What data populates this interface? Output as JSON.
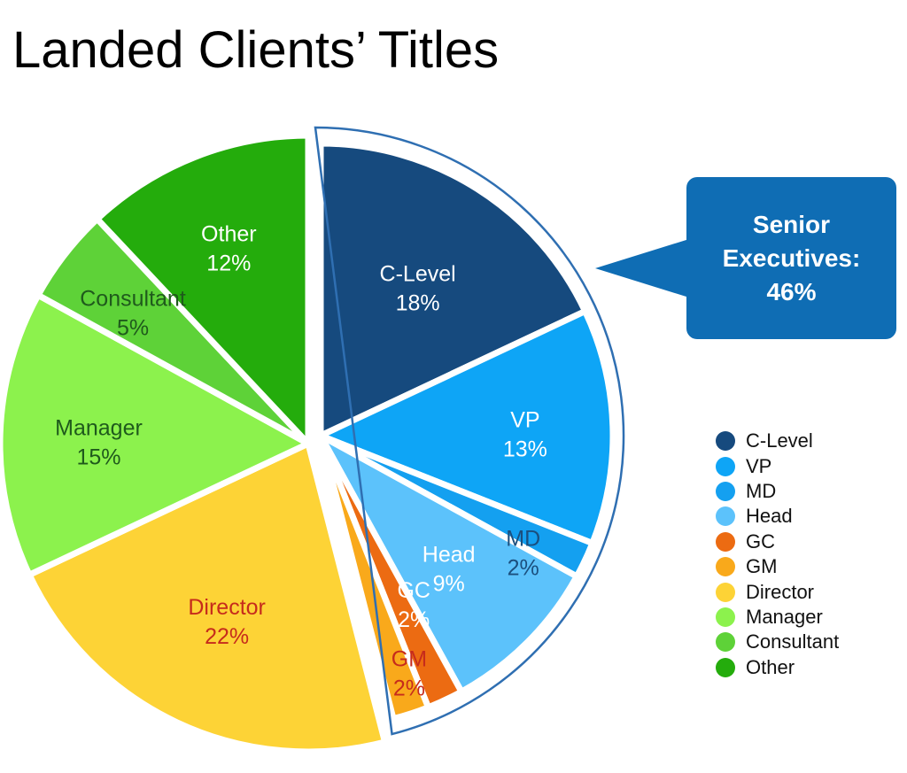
{
  "title": "Landed Clients’ Titles",
  "callout": {
    "line1": "Senior",
    "line2": "Executives:",
    "line3": "46%"
  },
  "chart_data": {
    "type": "pie",
    "title": "Landed Clients’ Titles",
    "legend_position": "right",
    "categories": [
      "C-Level",
      "VP",
      "MD",
      "Head",
      "GC",
      "GM",
      "Director",
      "Manager",
      "Consultant",
      "Other"
    ],
    "values": [
      18,
      13,
      2,
      9,
      2,
      2,
      22,
      15,
      5,
      12
    ],
    "slices": [
      {
        "label": "C-Level",
        "pct_label": "18%",
        "value": 18,
        "color": "#164a7e",
        "text_color": "#ffffff",
        "label_shown": "C-Level"
      },
      {
        "label": "VP",
        "pct_label": "13%",
        "value": 13,
        "color": "#0ea5f6",
        "text_color": "#ffffff",
        "label_shown": "VP"
      },
      {
        "label": "MD",
        "pct_label": "2%",
        "value": 2,
        "color": "#14a0f0",
        "text_color": "#1b4f7e",
        "label_shown": "MD"
      },
      {
        "label": "Head",
        "pct_label": "9%",
        "value": 9,
        "color": "#5cc2fb",
        "text_color": "#ffffff",
        "label_shown": "Head"
      },
      {
        "label": "GC",
        "pct_label": "2%",
        "value": 2,
        "color": "#ec6b12",
        "text_color": "#ffffff",
        "label_shown": "GC"
      },
      {
        "label": "GM",
        "pct_label": "2%",
        "value": 2,
        "color": "#f9a91b",
        "text_color": "#c62b1c",
        "label_shown": "GM"
      },
      {
        "label": "Director",
        "pct_label": "22%",
        "value": 22,
        "color": "#fdd336",
        "text_color": "#c62b1c",
        "label_shown": "Director"
      },
      {
        "label": "Manager",
        "pct_label": "15%",
        "value": 15,
        "color": "#8cf24d",
        "text_color": "#1f5a1c",
        "label_shown": "Manager"
      },
      {
        "label": "Consultant",
        "pct_label": "5%",
        "value": 5,
        "color": "#5ed238",
        "text_color": "#1f5a1c",
        "label_shown": "Consultant"
      },
      {
        "label": "Other",
        "pct_label": "12%",
        "value": 12,
        "color": "#24ac0c",
        "text_color": "#ffffff",
        "label_shown": "Other"
      }
    ],
    "highlight_group": {
      "members": [
        "C-Level",
        "VP",
        "MD",
        "Head",
        "GC",
        "GM"
      ],
      "text": "Senior Executives: 46%",
      "outline_color": "#2f6fb2",
      "callout_color": "#0f6db4"
    }
  }
}
